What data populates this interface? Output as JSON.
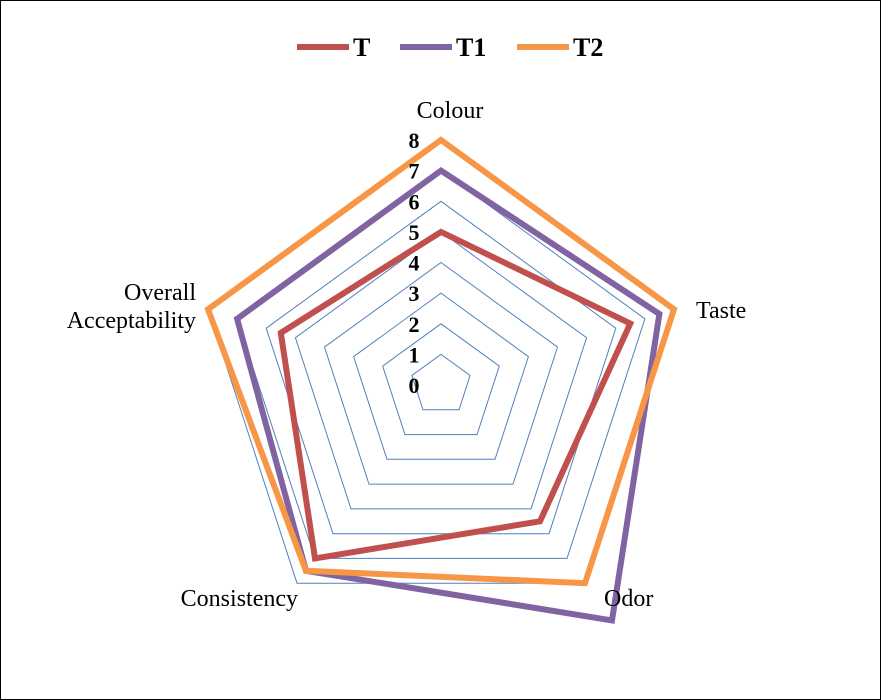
{
  "chart_data": {
    "type": "radar",
    "categories": [
      "Colour",
      "Taste",
      "Odor",
      "Consistency",
      "Overall Acceptability"
    ],
    "category_lines": [
      [
        "Colour"
      ],
      [
        "Taste"
      ],
      [
        "Odor"
      ],
      [
        "Consistency"
      ],
      [
        "Overall",
        "Acceptability"
      ]
    ],
    "rmin": 0,
    "rmax": 8,
    "ticks": [
      "0",
      "1",
      "2",
      "3",
      "4",
      "5",
      "6",
      "7",
      "8"
    ],
    "grid": true,
    "legend_position": "top",
    "series": [
      {
        "name": "T",
        "color": "#C0504D",
        "values": [
          5.0,
          6.5,
          5.5,
          7.0,
          5.5
        ]
      },
      {
        "name": "T1",
        "color": "#8064A2",
        "values": [
          7.0,
          7.5,
          9.5,
          7.5,
          7.0
        ]
      },
      {
        "name": "T2",
        "color": "#F79646",
        "values": [
          8.0,
          8.0,
          8.0,
          7.5,
          8.0
        ]
      }
    ],
    "gridline_color": "#4F81BD"
  }
}
